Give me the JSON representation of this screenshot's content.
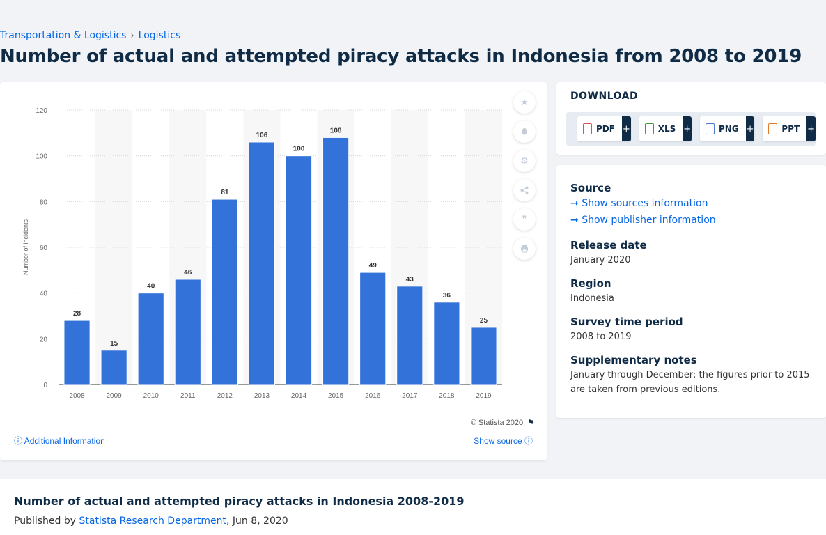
{
  "breadcrumb": {
    "category": "Transportation & Logistics",
    "sep": "›",
    "subcategory": "Logistics"
  },
  "page_title": "Number of actual and attempted piracy attacks in Indonesia from 2008 to 2019",
  "chart_data": {
    "type": "bar",
    "categories": [
      "2008",
      "2009",
      "2010",
      "2011",
      "2012",
      "2013",
      "2014",
      "2015",
      "2016",
      "2017",
      "2018",
      "2019"
    ],
    "values": [
      28,
      15,
      40,
      46,
      81,
      106,
      100,
      108,
      49,
      43,
      36,
      25
    ],
    "ylabel": "Number of incidents",
    "xlabel": "",
    "ylim": [
      0,
      120
    ],
    "yticks": [
      0,
      20,
      40,
      60,
      80,
      100,
      120
    ],
    "grid": true,
    "bar_color": "#3272d9",
    "data_labels": true
  },
  "chart_footer": {
    "copyright": "© Statista 2020",
    "additional_info": "Additional Information",
    "show_source": "Show source"
  },
  "download": {
    "title": "DOWNLOAD",
    "formats": [
      {
        "label": "PDF",
        "color": "#d9534f"
      },
      {
        "label": "XLS",
        "color": "#3d9a3d"
      },
      {
        "label": "PNG",
        "color": "#4a7bd0"
      },
      {
        "label": "PPT",
        "color": "#e07b2b"
      }
    ],
    "plus": "+"
  },
  "info": {
    "source_h": "Source",
    "show_sources": "Show sources information",
    "show_publisher": "Show publisher information",
    "release_h": "Release date",
    "release_v": "January 2020",
    "region_h": "Region",
    "region_v": "Indonesia",
    "period_h": "Survey time period",
    "period_v": "2008 to 2019",
    "notes_h": "Supplementary notes",
    "notes_v": "January through December; the figures prior to 2015 are taken from previous editions."
  },
  "bottom": {
    "title": "Number of actual and attempted piracy attacks in Indonesia 2008-2019",
    "published_prefix": "Published by",
    "author": "Statista Research Department",
    "date": ", Jun 8, 2020"
  }
}
